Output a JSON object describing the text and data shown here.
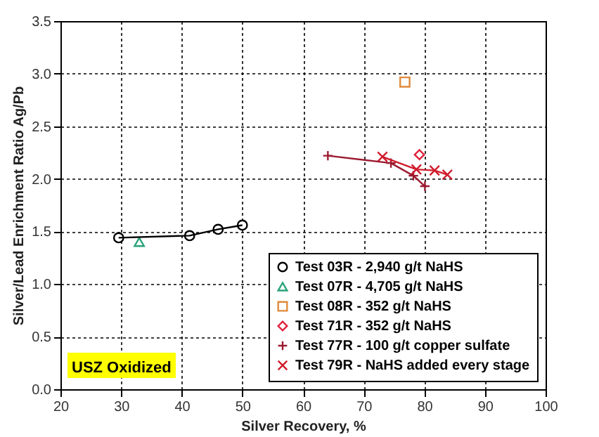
{
  "chart_data": {
    "type": "line",
    "xlabel": "Silver Recovery, %",
    "ylabel": "Silver/Lead Enrichment Ratio Ag/Pb",
    "xlim": [
      20,
      100
    ],
    "xticks": [
      20,
      30,
      40,
      50,
      60,
      70,
      80,
      90,
      100
    ],
    "ylim": [
      0,
      3.5
    ],
    "yticks": [
      {
        "value": 0,
        "label": "0.0"
      },
      {
        "value": 0.5,
        "label": "0.5"
      },
      {
        "value": 1,
        "label": "1.0"
      },
      {
        "value": 1.5,
        "label": "1.5"
      },
      {
        "value": 2,
        "label": "2.0"
      },
      {
        "value": 2.5,
        "label": "2.5"
      },
      {
        "value": 3,
        "label": "3.0"
      },
      {
        "value": 3.5,
        "label": "3.5"
      }
    ],
    "grid": true,
    "legend": "bottom right",
    "annotations": [
      "USZ Oxidized"
    ],
    "series": [
      {
        "name": "Test 03R - 2,940 g/t NaHS",
        "color": "#000000",
        "marker": "circle",
        "x": [
          29.6,
          41.3,
          46,
          50
        ],
        "values": [
          1.44,
          1.46,
          1.52,
          1.56
        ]
      },
      {
        "name": "Test 07R - 4,705 g/t NaHS",
        "color": "#2aa37a",
        "type": "scatter",
        "marker": "triangle",
        "x": [
          33
        ],
        "values": [
          1.4
        ]
      },
      {
        "name": "Test 08R - 352 g/t NaHS",
        "color": "#e08a3c",
        "type": "scatter",
        "marker": "square",
        "x": [
          76.8
        ],
        "values": [
          2.92
        ]
      },
      {
        "name": "Test 71R - 352 g/t NaHS",
        "color": "#e0203c",
        "type": "scatter",
        "marker": "diamond",
        "x": [
          79.2
        ],
        "values": [
          2.23
        ]
      },
      {
        "name": "Test 77R - 100 g/t copper sulfate",
        "color": "#9b1b30",
        "marker": "cross",
        "x": [
          64.1,
          74.5,
          78.2,
          80.1
        ],
        "values": [
          2.22,
          2.15,
          2.03,
          1.93
        ]
      },
      {
        "name": "Test 79R - NaHS added every stage",
        "color": "#d01c2c",
        "marker": "cross",
        "x": [
          73.1,
          78.7,
          81.7,
          83.8
        ],
        "values": [
          2.21,
          2.09,
          2.08,
          2.04
        ]
      }
    ]
  }
}
